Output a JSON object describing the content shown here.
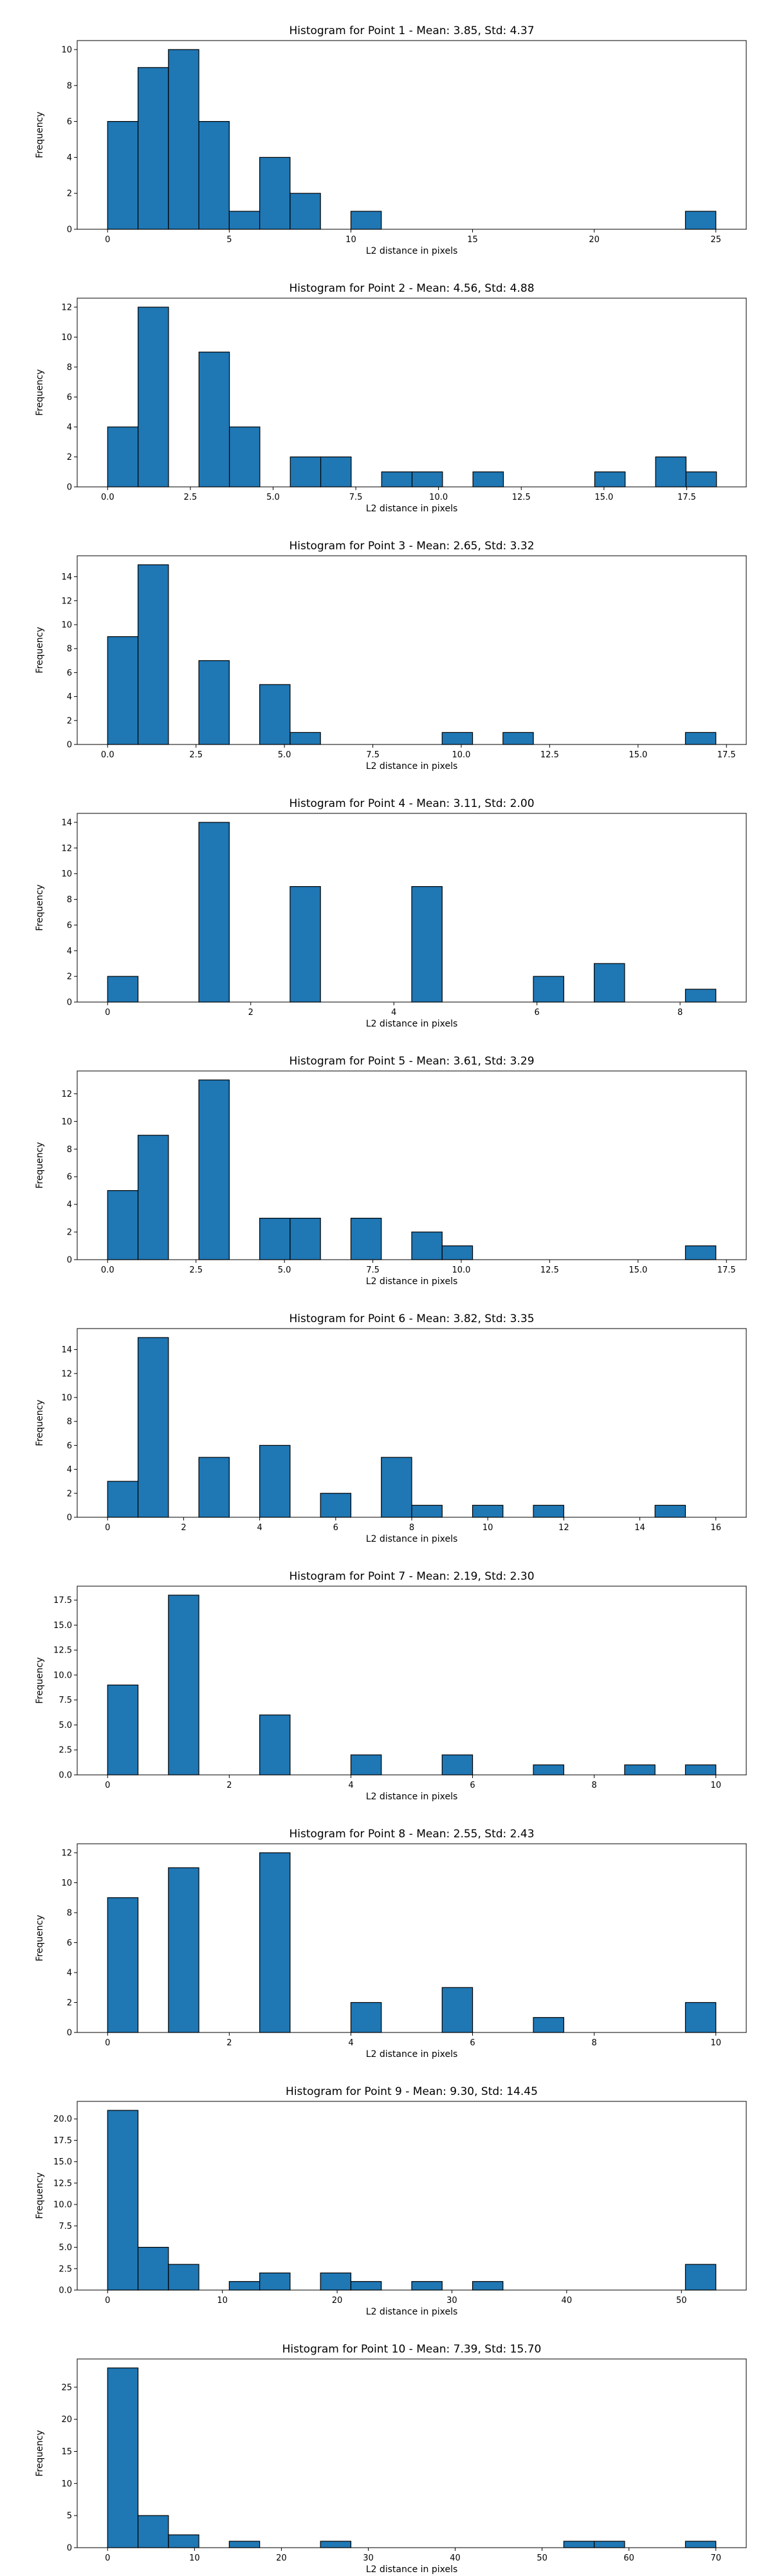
{
  "chart_data": [
    {
      "type": "bar",
      "title": "Histogram for Point 1 - Mean: 3.85, Std: 4.37",
      "xlabel": "L2 distance in pixels",
      "ylabel": "Frequency",
      "xlim": [
        -1.25,
        26.25
      ],
      "ylim": [
        0,
        10.5
      ],
      "xticks": [
        0,
        5,
        10,
        15,
        20,
        25
      ],
      "yticks": [
        0,
        2,
        4,
        6,
        8,
        10
      ],
      "bin_edges": [
        0.0,
        1.25,
        2.5,
        3.75,
        5.0,
        6.25,
        7.5,
        8.75,
        10.0,
        11.25,
        12.5,
        13.75,
        15.0,
        16.25,
        17.5,
        18.75,
        20.0,
        21.25,
        22.5,
        23.75,
        25.0
      ],
      "values": [
        6,
        9,
        10,
        6,
        1,
        4,
        2,
        0,
        1,
        0,
        0,
        0,
        0,
        0,
        0,
        0,
        0,
        0,
        0,
        1
      ]
    },
    {
      "type": "bar",
      "title": "Histogram for Point 2 - Mean: 4.56, Std: 4.88",
      "xlabel": "L2 distance in pixels",
      "ylabel": "Frequency",
      "xlim": [
        -0.92,
        19.3
      ],
      "ylim": [
        0,
        12.6
      ],
      "xticks": [
        0.0,
        2.5,
        5.0,
        7.5,
        10.0,
        12.5,
        15.0,
        17.5
      ],
      "yticks": [
        0,
        2,
        4,
        6,
        8,
        10,
        12
      ],
      "bin_edges": [
        0.0,
        0.92,
        1.84,
        2.76,
        3.68,
        4.6,
        5.52,
        6.44,
        7.36,
        8.28,
        9.2,
        10.12,
        11.04,
        11.96,
        12.88,
        13.8,
        14.72,
        15.64,
        16.56,
        17.48,
        18.4
      ],
      "values": [
        4,
        12,
        0,
        9,
        4,
        0,
        2,
        2,
        0,
        1,
        1,
        0,
        1,
        0,
        0,
        0,
        1,
        0,
        2,
        1
      ]
    },
    {
      "type": "bar",
      "title": "Histogram for Point 3 - Mean: 2.65, Std: 3.32",
      "xlabel": "L2 distance in pixels",
      "ylabel": "Frequency",
      "xlim": [
        -0.86,
        18.06
      ],
      "ylim": [
        0,
        15.75
      ],
      "xticks": [
        0.0,
        2.5,
        5.0,
        7.5,
        10.0,
        12.5,
        15.0,
        17.5
      ],
      "yticks": [
        0,
        2,
        4,
        6,
        8,
        10,
        12,
        14
      ],
      "bin_edges": [
        0.0,
        0.86,
        1.72,
        2.58,
        3.44,
        4.3,
        5.16,
        6.02,
        6.88,
        7.74,
        8.6,
        9.46,
        10.32,
        11.18,
        12.04,
        12.9,
        13.76,
        14.62,
        15.48,
        16.34,
        17.2
      ],
      "values": [
        9,
        15,
        0,
        7,
        0,
        5,
        1,
        0,
        0,
        0,
        0,
        1,
        0,
        1,
        0,
        0,
        0,
        0,
        0,
        1
      ]
    },
    {
      "type": "bar",
      "title": "Histogram for Point 4 - Mean: 3.11, Std: 2.00",
      "xlabel": "L2 distance in pixels",
      "ylabel": "Frequency",
      "xlim": [
        -0.425,
        8.925
      ],
      "ylim": [
        0,
        14.7
      ],
      "xticks": [
        0,
        2,
        4,
        6,
        8
      ],
      "yticks": [
        0,
        2,
        4,
        6,
        8,
        10,
        12,
        14
      ],
      "bin_edges": [
        0.0,
        0.425,
        0.85,
        1.275,
        1.7,
        2.125,
        2.55,
        2.975,
        3.4,
        3.825,
        4.25,
        4.675,
        5.1,
        5.525,
        5.95,
        6.375,
        6.8,
        7.225,
        7.65,
        8.075,
        8.5
      ],
      "values": [
        2,
        0,
        0,
        14,
        0,
        0,
        9,
        0,
        0,
        0,
        9,
        0,
        0,
        0,
        2,
        0,
        3,
        0,
        0,
        1
      ]
    },
    {
      "type": "bar",
      "title": "Histogram for Point 5 - Mean: 3.61, Std: 3.29",
      "xlabel": "L2 distance in pixels",
      "ylabel": "Frequency",
      "xlim": [
        -0.86,
        18.06
      ],
      "ylim": [
        0,
        13.65
      ],
      "xticks": [
        0.0,
        2.5,
        5.0,
        7.5,
        10.0,
        12.5,
        15.0,
        17.5
      ],
      "yticks": [
        0,
        2,
        4,
        6,
        8,
        10,
        12
      ],
      "bin_edges": [
        0.0,
        0.86,
        1.72,
        2.58,
        3.44,
        4.3,
        5.16,
        6.02,
        6.88,
        7.74,
        8.6,
        9.46,
        10.32,
        11.18,
        12.04,
        12.9,
        13.76,
        14.62,
        15.48,
        16.34,
        17.2
      ],
      "values": [
        5,
        9,
        0,
        13,
        0,
        3,
        3,
        0,
        3,
        0,
        2,
        1,
        0,
        0,
        0,
        0,
        0,
        0,
        0,
        1
      ]
    },
    {
      "type": "bar",
      "title": "Histogram for Point 6 - Mean: 3.82, Std: 3.35",
      "xlabel": "L2 distance in pixels",
      "ylabel": "Frequency",
      "xlim": [
        -0.8,
        16.8
      ],
      "ylim": [
        0,
        15.75
      ],
      "xticks": [
        0,
        2,
        4,
        6,
        8,
        10,
        12,
        14,
        16
      ],
      "yticks": [
        0,
        2,
        4,
        6,
        8,
        10,
        12,
        14
      ],
      "bin_edges": [
        0.0,
        0.8,
        1.6,
        2.4,
        3.2,
        4.0,
        4.8,
        5.6,
        6.4,
        7.2,
        8.0,
        8.8,
        9.6,
        10.4,
        11.2,
        12.0,
        12.8,
        13.6,
        14.4,
        15.2,
        16.0
      ],
      "values": [
        3,
        15,
        0,
        5,
        0,
        6,
        0,
        2,
        0,
        5,
        1,
        0,
        1,
        0,
        1,
        0,
        0,
        0,
        1,
        0
      ]
    },
    {
      "type": "bar",
      "title": "Histogram for Point 7 - Mean: 2.19, Std: 2.30",
      "xlabel": "L2 distance in pixels",
      "ylabel": "Frequency",
      "xlim": [
        -0.5,
        10.5
      ],
      "ylim": [
        0,
        18.9
      ],
      "xticks": [
        0,
        2,
        4,
        6,
        8,
        10
      ],
      "yticks": [
        0.0,
        2.5,
        5.0,
        7.5,
        10.0,
        12.5,
        15.0,
        17.5
      ],
      "bin_edges": [
        0.0,
        0.5,
        1.0,
        1.5,
        2.0,
        2.5,
        3.0,
        3.5,
        4.0,
        4.5,
        5.0,
        5.5,
        6.0,
        6.5,
        7.0,
        7.5,
        8.0,
        8.5,
        9.0,
        9.5,
        10.0
      ],
      "values": [
        9,
        0,
        18,
        0,
        0,
        6,
        0,
        0,
        2,
        0,
        0,
        2,
        0,
        0,
        1,
        0,
        0,
        1,
        0,
        1
      ]
    },
    {
      "type": "bar",
      "title": "Histogram for Point 8 - Mean: 2.55, Std: 2.43",
      "xlabel": "L2 distance in pixels",
      "ylabel": "Frequency",
      "xlim": [
        -0.5,
        10.5
      ],
      "ylim": [
        0,
        12.6
      ],
      "xticks": [
        0,
        2,
        4,
        6,
        8,
        10
      ],
      "yticks": [
        0,
        2,
        4,
        6,
        8,
        10,
        12
      ],
      "bin_edges": [
        0.0,
        0.5,
        1.0,
        1.5,
        2.0,
        2.5,
        3.0,
        3.5,
        4.0,
        4.5,
        5.0,
        5.5,
        6.0,
        6.5,
        7.0,
        7.5,
        8.0,
        8.5,
        9.0,
        9.5,
        10.0
      ],
      "values": [
        9,
        0,
        11,
        0,
        0,
        12,
        0,
        0,
        2,
        0,
        0,
        3,
        0,
        0,
        1,
        0,
        0,
        0,
        0,
        2
      ]
    },
    {
      "type": "bar",
      "title": "Histogram for Point 9 - Mean: 9.30, Std: 14.45",
      "xlabel": "L2 distance in pixels",
      "ylabel": "Frequency",
      "xlim": [
        -2.65,
        55.65
      ],
      "ylim": [
        0,
        22.05
      ],
      "xticks": [
        0,
        10,
        20,
        30,
        40,
        50
      ],
      "yticks": [
        0.0,
        2.5,
        5.0,
        7.5,
        10.0,
        12.5,
        15.0,
        17.5,
        20.0
      ],
      "bin_edges": [
        0.0,
        2.65,
        5.3,
        7.95,
        10.6,
        13.25,
        15.9,
        18.55,
        21.2,
        23.85,
        26.5,
        29.15,
        31.8,
        34.45,
        37.1,
        39.75,
        42.4,
        45.05,
        47.7,
        50.35,
        53.0
      ],
      "values": [
        21,
        5,
        3,
        0,
        1,
        2,
        0,
        2,
        1,
        0,
        1,
        0,
        1,
        0,
        0,
        0,
        0,
        0,
        0,
        3
      ]
    },
    {
      "type": "bar",
      "title": "Histogram for Point 10 - Mean: 7.39, Std: 15.70",
      "xlabel": "L2 distance in pixels",
      "ylabel": "Frequency",
      "xlim": [
        -3.5,
        73.5
      ],
      "ylim": [
        0,
        29.4
      ],
      "xticks": [
        0,
        10,
        20,
        30,
        40,
        50,
        60,
        70
      ],
      "yticks": [
        0,
        5,
        10,
        15,
        20,
        25
      ],
      "bin_edges": [
        0.0,
        3.5,
        7.0,
        10.5,
        14.0,
        17.5,
        21.0,
        24.5,
        28.0,
        31.5,
        35.0,
        38.5,
        42.0,
        45.5,
        49.0,
        52.5,
        56.0,
        59.5,
        63.0,
        66.5,
        70.0
      ],
      "values": [
        28,
        5,
        2,
        0,
        1,
        0,
        0,
        1,
        0,
        0,
        0,
        0,
        0,
        0,
        0,
        1,
        1,
        0,
        0,
        1
      ]
    }
  ]
}
